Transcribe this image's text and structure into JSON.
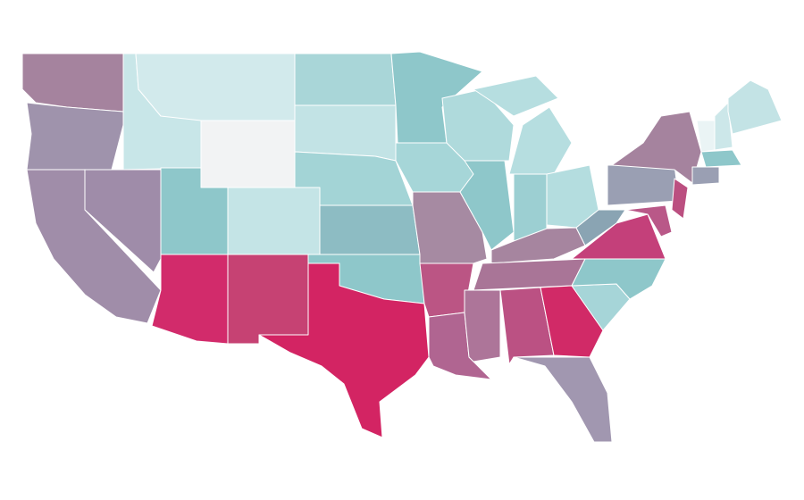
{
  "map": {
    "fills": [
      "#a5839e",
      "#9f93ac",
      "#a08da9",
      "#9f8ca9",
      "#c8e6e8",
      "#d2eaec",
      "#f2f3f4",
      "#8ec7ca",
      "#c4e4e6",
      "#d22b6b",
      "#c64273",
      "#a9d6d8",
      "#c2e3e5",
      "#a3d4d6",
      "#8dbcc3",
      "#d32463",
      "#a6d6d8",
      "#a68aa2",
      "#bb5584",
      "#b06591",
      "#afdadc",
      "#b6dee0",
      "#9ccfd2",
      "#b4dddf",
      "#a6859f",
      "#a97597",
      "#ad7599",
      "#bb5183",
      "#d12a67",
      "#a197b0",
      "#a6d5d8",
      "#c4407a",
      "#8aa4b3",
      "#9a9fb3",
      "#eaf4f5",
      "#cce7e9",
      "#c3e3e5",
      "#bb4f80",
      "#b95888"
    ]
  }
}
